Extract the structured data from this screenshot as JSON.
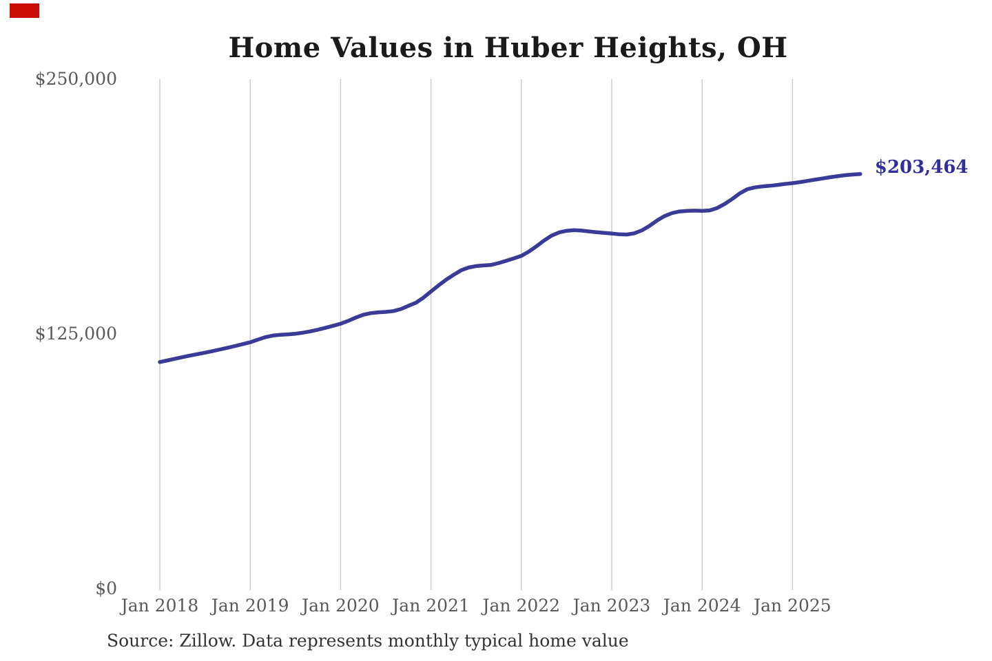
{
  "title": "Home Values in Huber Heights, OH",
  "end_label": "$203,464",
  "source_note": "Source: Zillow. Data represents monthly typical home value",
  "y_axis": {
    "labels": [
      "$250,000",
      "$125,000",
      "$0"
    ]
  },
  "x_axis": {
    "labels": [
      "Jan 2018",
      "Jan 2019",
      "Jan 2020",
      "Jan 2021",
      "Jan 2022",
      "Jan 2023",
      "Jan 2024",
      "Jan 2025"
    ]
  },
  "colors": {
    "line": "#3a3a97",
    "end_label": "#312e9b",
    "grid": "#cccccc",
    "axis_text": "#595959",
    "title_text": "#1a1a1a",
    "source_text": "#333333",
    "marker_red": "#c90d06",
    "background": "#ffffff"
  },
  "chart_data": {
    "type": "line",
    "title": "Home Values in Huber Heights, OH",
    "series_name": "Typical home value",
    "x": [
      "2018-01",
      "2018-02",
      "2018-03",
      "2018-04",
      "2018-05",
      "2018-06",
      "2018-07",
      "2018-08",
      "2018-09",
      "2018-10",
      "2018-11",
      "2018-12",
      "2019-01",
      "2019-02",
      "2019-03",
      "2019-04",
      "2019-05",
      "2019-06",
      "2019-07",
      "2019-08",
      "2019-09",
      "2019-10",
      "2019-11",
      "2019-12",
      "2020-01",
      "2020-02",
      "2020-03",
      "2020-04",
      "2020-05",
      "2020-06",
      "2020-07",
      "2020-08",
      "2020-09",
      "2020-10",
      "2020-11",
      "2020-12",
      "2021-01",
      "2021-02",
      "2021-03",
      "2021-04",
      "2021-05",
      "2021-06",
      "2021-07",
      "2021-08",
      "2021-09",
      "2021-10",
      "2021-11",
      "2021-12",
      "2022-01",
      "2022-02",
      "2022-03",
      "2022-04",
      "2022-05",
      "2022-06",
      "2022-07",
      "2022-08",
      "2022-09",
      "2022-10",
      "2022-11",
      "2022-12",
      "2023-01",
      "2023-02",
      "2023-03",
      "2023-04",
      "2023-05",
      "2023-06",
      "2023-07",
      "2023-08",
      "2023-09",
      "2023-10",
      "2023-11",
      "2023-12",
      "2024-01",
      "2024-02",
      "2024-03",
      "2024-04",
      "2024-05",
      "2024-06",
      "2024-07",
      "2024-08",
      "2024-09",
      "2024-10",
      "2024-11",
      "2024-12",
      "2025-01",
      "2025-02",
      "2025-03",
      "2025-04",
      "2025-05",
      "2025-06",
      "2025-07",
      "2025-08",
      "2025-09",
      "2025-10"
    ],
    "values": [
      111200,
      112000,
      112800,
      113600,
      114400,
      115100,
      115800,
      116600,
      117400,
      118200,
      119100,
      120000,
      120900,
      122200,
      123400,
      124200,
      124600,
      124800,
      125100,
      125600,
      126300,
      127100,
      128000,
      129000,
      130000,
      131400,
      133000,
      134400,
      135200,
      135600,
      135800,
      136200,
      137200,
      138800,
      140300,
      142800,
      145800,
      148800,
      151600,
      154000,
      156200,
      157600,
      158300,
      158600,
      158900,
      159800,
      160900,
      162100,
      163300,
      165400,
      168000,
      170800,
      173200,
      174800,
      175600,
      175900,
      175700,
      175300,
      174900,
      174600,
      174300,
      173900,
      173800,
      174400,
      175800,
      178000,
      180600,
      182800,
      184300,
      185100,
      185400,
      185500,
      185400,
      185600,
      186800,
      188800,
      191200,
      194000,
      196000,
      196900,
      197400,
      197700,
      198100,
      198600,
      199000,
      199500,
      200100,
      200700,
      201300,
      201900,
      202400,
      202900,
      203200,
      203464
    ],
    "ylim": [
      0,
      250000
    ],
    "ytick_values": [
      250000,
      125000,
      0
    ],
    "ytick_labels": [
      "$250,000",
      "$125,000",
      "$0"
    ],
    "xtick_labels": [
      "Jan 2018",
      "Jan 2019",
      "Jan 2020",
      "Jan 2021",
      "Jan 2022",
      "Jan 2023",
      "Jan 2024",
      "Jan 2025"
    ],
    "grid": "vertical-only",
    "legend": "none",
    "end_annotation": "$203,464",
    "source": "Source: Zillow. Data represents monthly typical home value"
  }
}
